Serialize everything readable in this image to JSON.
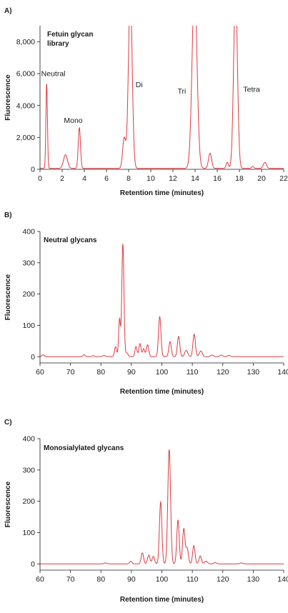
{
  "colors": {
    "trace": "#e0393f",
    "axis": "#1a1a1a",
    "text": "#1a1a1a"
  },
  "chart_data": [
    {
      "panel": "A)",
      "type": "line",
      "title": "Fetuin glycan library",
      "title_lines": [
        "Fetuin glycan",
        "library"
      ],
      "xlabel": "Retention time (minutes)",
      "ylabel": "Fluorescence",
      "xlim": [
        0,
        22
      ],
      "ylim": [
        0,
        9000
      ],
      "xticks": [
        0,
        2,
        4,
        6,
        8,
        10,
        12,
        14,
        16,
        18,
        20,
        22
      ],
      "yticks": [
        0,
        2000,
        4000,
        6000,
        8000
      ],
      "ytick_labels": [
        "0",
        "2,000",
        "4,000",
        "6,000",
        "8,000"
      ],
      "baseline": 60,
      "peaks": [
        {
          "x": 0.6,
          "h": 5300,
          "w": 0.07
        },
        {
          "x": 2.3,
          "h": 850,
          "w": 0.18
        },
        {
          "x": 3.55,
          "h": 2550,
          "w": 0.1
        },
        {
          "x": 7.6,
          "h": 1900,
          "w": 0.14
        },
        {
          "x": 8.15,
          "h": 11000,
          "w": 0.17
        },
        {
          "x": 13.95,
          "h": 11500,
          "w": 0.22
        },
        {
          "x": 15.35,
          "h": 950,
          "w": 0.14
        },
        {
          "x": 16.9,
          "h": 380,
          "w": 0.1
        },
        {
          "x": 17.65,
          "h": 11200,
          "w": 0.17
        },
        {
          "x": 19.2,
          "h": 120,
          "w": 0.1
        },
        {
          "x": 20.3,
          "h": 380,
          "w": 0.14
        }
      ],
      "annotations": [
        {
          "text": "Neutral",
          "x": 1.2,
          "y": 5850
        },
        {
          "text": "Mono",
          "x": 3.0,
          "y": 2900
        },
        {
          "text": "Di",
          "x": 8.95,
          "y": 5150
        },
        {
          "text": "Tri",
          "x": 12.8,
          "y": 4750
        },
        {
          "text": "Tetra",
          "x": 19.1,
          "y": 4850
        }
      ]
    },
    {
      "panel": "B)",
      "type": "line",
      "title": "Neutral glycans",
      "title_lines": [
        "Neutral glycans"
      ],
      "xlabel": "Retention time (minutes)",
      "ylabel": "Fluorescence",
      "xlim": [
        60,
        140
      ],
      "ylim": [
        -20,
        400
      ],
      "xticks": [
        60,
        70,
        80,
        90,
        100,
        110,
        120,
        130,
        140
      ],
      "yticks": [
        0,
        100,
        200,
        300,
        400
      ],
      "ytick_labels": [
        "0",
        "100",
        "200",
        "300",
        "400"
      ],
      "baseline": 0,
      "peaks": [
        {
          "x": 61,
          "h": 6,
          "w": 0.4
        },
        {
          "x": 74.5,
          "h": 6,
          "w": 0.4
        },
        {
          "x": 77.5,
          "h": 3,
          "w": 0.4
        },
        {
          "x": 81,
          "h": 4,
          "w": 0.5
        },
        {
          "x": 84.8,
          "h": 32,
          "w": 0.35
        },
        {
          "x": 86.1,
          "h": 120,
          "w": 0.3
        },
        {
          "x": 87.2,
          "h": 360,
          "w": 0.35
        },
        {
          "x": 88.5,
          "h": 12,
          "w": 0.4
        },
        {
          "x": 91.5,
          "h": 32,
          "w": 0.35
        },
        {
          "x": 92.8,
          "h": 42,
          "w": 0.35
        },
        {
          "x": 94,
          "h": 25,
          "w": 0.35
        },
        {
          "x": 95.3,
          "h": 38,
          "w": 0.4
        },
        {
          "x": 99.3,
          "h": 128,
          "w": 0.4
        },
        {
          "x": 102.7,
          "h": 48,
          "w": 0.4
        },
        {
          "x": 105.5,
          "h": 65,
          "w": 0.4
        },
        {
          "x": 108,
          "h": 20,
          "w": 0.5
        },
        {
          "x": 110.6,
          "h": 72,
          "w": 0.4
        },
        {
          "x": 112.8,
          "h": 18,
          "w": 0.5
        },
        {
          "x": 116.5,
          "h": 5,
          "w": 0.5
        },
        {
          "x": 119.5,
          "h": 5,
          "w": 0.5
        },
        {
          "x": 122,
          "h": 4,
          "w": 0.5
        }
      ],
      "annotations": []
    },
    {
      "panel": "C)",
      "type": "line",
      "title": "Monosialylated glycans",
      "title_lines": [
        "Monosialylated glycans"
      ],
      "xlabel": "Retention time (minutes)",
      "ylabel": "Fluorescence",
      "xlim": [
        60,
        140
      ],
      "ylim": [
        -20,
        400
      ],
      "xticks": [
        60,
        70,
        80,
        90,
        100,
        110,
        120,
        130,
        140
      ],
      "yticks": [
        0,
        100,
        200,
        300,
        400
      ],
      "ytick_labels": [
        "0",
        "100",
        "200",
        "300",
        "400"
      ],
      "baseline": 0,
      "peaks": [
        {
          "x": 81.5,
          "h": 3,
          "w": 0.5
        },
        {
          "x": 89.8,
          "h": 8,
          "w": 0.4
        },
        {
          "x": 93.6,
          "h": 35,
          "w": 0.4
        },
        {
          "x": 95.7,
          "h": 28,
          "w": 0.4
        },
        {
          "x": 97.2,
          "h": 24,
          "w": 0.4
        },
        {
          "x": 99.6,
          "h": 198,
          "w": 0.4
        },
        {
          "x": 102.4,
          "h": 365,
          "w": 0.45
        },
        {
          "x": 105.3,
          "h": 140,
          "w": 0.4
        },
        {
          "x": 107.2,
          "h": 112,
          "w": 0.4
        },
        {
          "x": 108.3,
          "h": 50,
          "w": 0.4
        },
        {
          "x": 110.5,
          "h": 58,
          "w": 0.4
        },
        {
          "x": 112.6,
          "h": 25,
          "w": 0.4
        },
        {
          "x": 114.5,
          "h": 8,
          "w": 0.5
        },
        {
          "x": 117.5,
          "h": 4,
          "w": 0.5
        },
        {
          "x": 126,
          "h": 3,
          "w": 0.5
        }
      ],
      "annotations": []
    }
  ]
}
